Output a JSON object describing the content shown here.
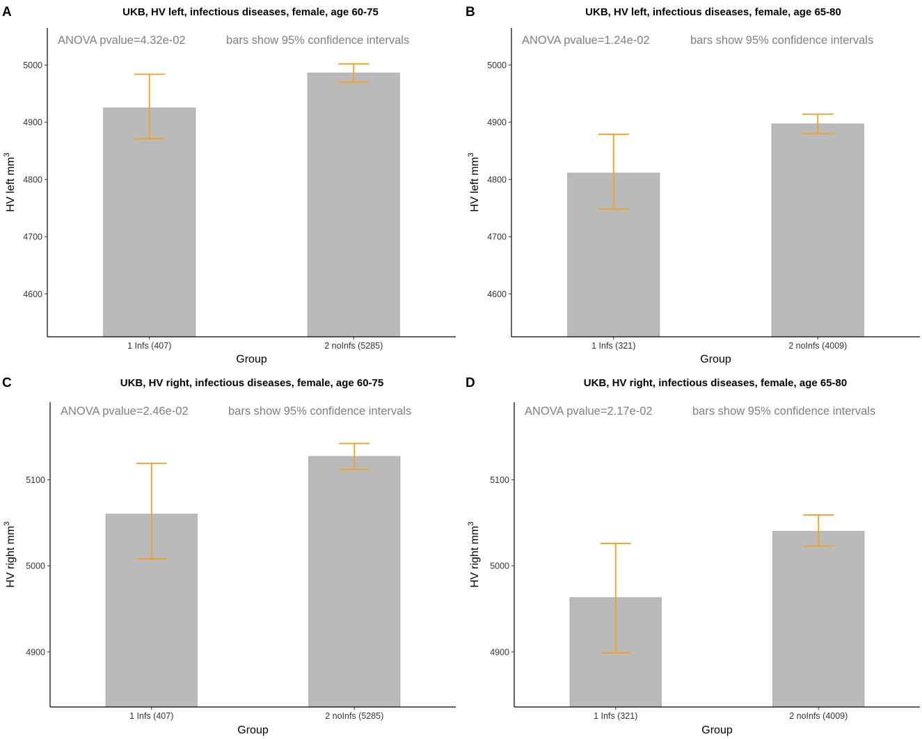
{
  "figure": {
    "colors": {
      "bar": "#bababa",
      "bar_stroke": "#a9a9a9",
      "error": "#f5a01a",
      "annotation": "#808080",
      "axis": "#000000",
      "text": "#1a1a1a"
    }
  },
  "chart_data": [
    {
      "type": "bar",
      "panel_label": "A",
      "title": "UKB, HV left, infectious diseases, female, age 60-75",
      "annotation_left": "ANOVA pvalue=4.32e-02",
      "annotation_right": "bars show 95% confidence intervals",
      "xlabel": "Group",
      "ylabel_main": "HV left mm",
      "ylabel_sup": "3",
      "categories": [
        "1 Infs (407)",
        "2 noInfs (5285)"
      ],
      "values": [
        4925,
        4986
      ],
      "ci_low": [
        4871,
        4970
      ],
      "ci_high": [
        4984,
        5002
      ],
      "ylim": [
        4525,
        5065
      ],
      "yticks": [
        4600,
        4700,
        4800,
        4900,
        5000
      ]
    },
    {
      "type": "bar",
      "panel_label": "B",
      "title": "UKB, HV left, infectious diseases, female, age 65-80",
      "annotation_left": "ANOVA pvalue=1.24e-02",
      "annotation_right": "bars show 95% confidence intervals",
      "xlabel": "Group",
      "ylabel_main": "HV left mm",
      "ylabel_sup": "3",
      "categories": [
        "1 Infs (321)",
        "2 noInfs (4009)"
      ],
      "values": [
        4811,
        4897
      ],
      "ci_low": [
        4748,
        4880
      ],
      "ci_high": [
        4879,
        4914
      ],
      "ylim": [
        4525,
        5065
      ],
      "yticks": [
        4600,
        4700,
        4800,
        4900,
        5000
      ]
    },
    {
      "type": "bar",
      "panel_label": "C",
      "title": "UKB, HV right, infectious diseases, female, age 60-75",
      "annotation_left": "ANOVA pvalue=2.46e-02",
      "annotation_right": "bars show 95% confidence intervals",
      "xlabel": "Group",
      "ylabel_main": "HV right mm",
      "ylabel_sup": "3",
      "categories": [
        "1 Infs (407)",
        "2 noInfs (5285)"
      ],
      "values": [
        5060,
        5127
      ],
      "ci_low": [
        5008,
        5112
      ],
      "ci_high": [
        5119,
        5142
      ],
      "ylim": [
        4836,
        5190
      ],
      "yticks": [
        4900,
        5000,
        5100
      ]
    },
    {
      "type": "bar",
      "panel_label": "D",
      "title": "UKB, HV right, infectious diseases, female, age 65-80",
      "annotation_left": "ANOVA pvalue=2.17e-02",
      "annotation_right": "bars show 95% confidence intervals",
      "xlabel": "Group",
      "ylabel_main": "HV right mm",
      "ylabel_sup": "3",
      "categories": [
        "1 Infs (321)",
        "2 noInfs (4009)"
      ],
      "values": [
        4963,
        5040
      ],
      "ci_low": [
        4899,
        5023
      ],
      "ci_high": [
        5026,
        5059
      ],
      "ylim": [
        4836,
        5190
      ],
      "yticks": [
        4900,
        5000,
        5100
      ]
    }
  ]
}
